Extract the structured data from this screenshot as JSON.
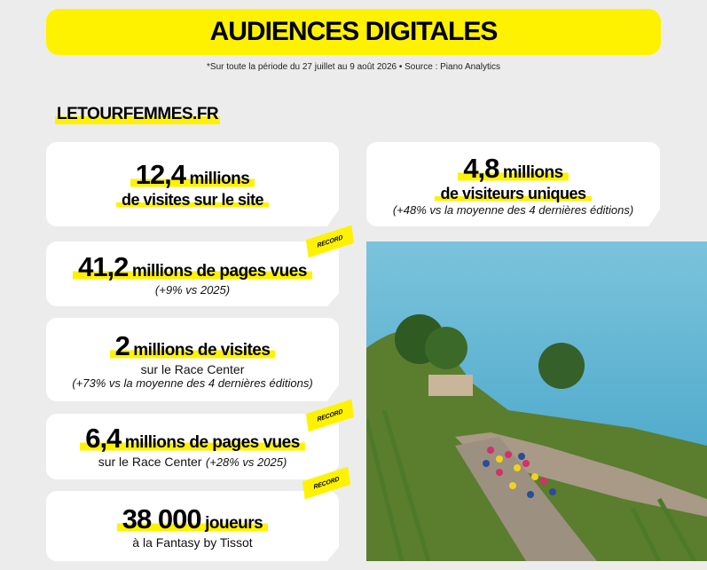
{
  "header": {
    "title": "AUDIENCES DIGITALES",
    "note": "*Sur toute la période du 27 juillet au 9 août 2026 • Source : Piano Analytics"
  },
  "section": {
    "title": "LETOURFEMMES.FR"
  },
  "cards": [
    {
      "figure": "12,4",
      "unit": "millions",
      "line": "de visites sur le site"
    },
    {
      "figure": "41,2",
      "unit": "millions de pages vues",
      "note": "(+9% vs 2025)",
      "badge": "RECORD"
    },
    {
      "figure": "2",
      "unit": "millions de visites",
      "line": "sur le Race Center",
      "note": "(+73% vs la moyenne des 4 dernières éditions)"
    },
    {
      "figure": "6,4",
      "unit": "millions de pages vues",
      "line": "sur le Race Center",
      "note": "(+28% vs 2025)",
      "badge": "RECORD"
    },
    {
      "figure": "38 000",
      "unit": "joueurs",
      "line": "à la Fantasy by Tissot",
      "badge": "RECORD"
    }
  ],
  "side_card": {
    "figure": "4,8",
    "unit": "millions",
    "line": "de visiteurs uniques",
    "note": "(+48% vs la moyenne des 4 dernières éditions)"
  }
}
